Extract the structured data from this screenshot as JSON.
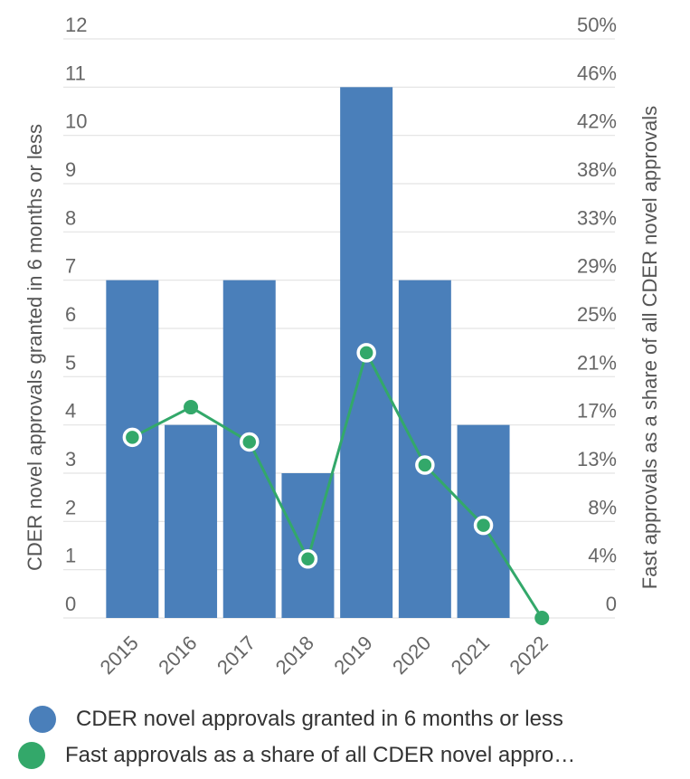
{
  "chart_data": {
    "type": "bar",
    "categories": [
      "2015",
      "2016",
      "2017",
      "2018",
      "2019",
      "2020",
      "2021",
      "2022"
    ],
    "series": [
      {
        "name": "CDER novel approvals granted in 6 months or less",
        "type": "bar",
        "axis": "left",
        "values": [
          7,
          4,
          7,
          3,
          11,
          7,
          4,
          0
        ],
        "color": "#4a7fba"
      },
      {
        "name": "Fast approvals as a share of all CDER novel approvals",
        "legend_text": "Fast approvals as a share of all CDER novel appro…",
        "type": "line",
        "axis": "right",
        "values": [
          15.6,
          18.2,
          15.2,
          5.1,
          22.9,
          13.2,
          8.0,
          0
        ],
        "color": "#33a86a"
      }
    ],
    "ylabel": "CDER novel approvals granted in 6 months or less",
    "y2label": "Fast approvals as a share of all CDER novel approvals",
    "ylim": [
      0,
      12
    ],
    "y2lim": [
      0,
      50
    ],
    "yticks": [
      "0",
      "1",
      "2",
      "3",
      "4",
      "5",
      "6",
      "7",
      "8",
      "9",
      "10",
      "11",
      "12"
    ],
    "y2ticks": [
      "0",
      "4%",
      "8%",
      "13%",
      "17%",
      "21%",
      "25%",
      "29%",
      "33%",
      "38%",
      "42%",
      "46%",
      "50%"
    ],
    "grid": true,
    "legend_position": "bottom"
  }
}
